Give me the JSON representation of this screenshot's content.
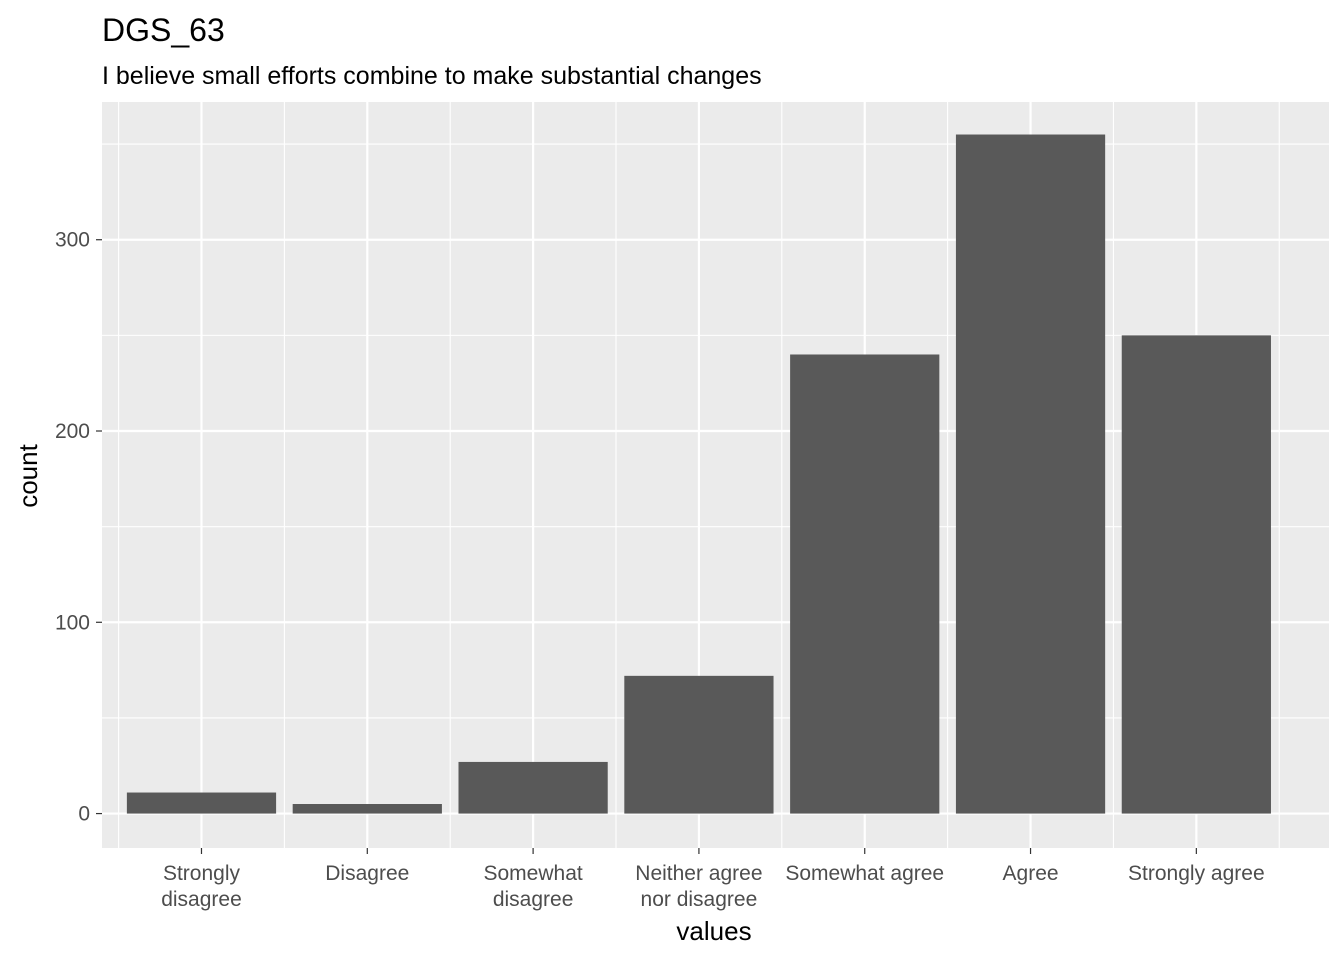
{
  "chart_data": {
    "type": "bar",
    "title": "DGS_63",
    "subtitle": "I believe small efforts combine to make substantial changes",
    "xlabel": "values",
    "ylabel": "count",
    "categories": [
      [
        "Strongly",
        "disagree"
      ],
      [
        "Disagree"
      ],
      [
        "Somewhat",
        "disagree"
      ],
      [
        "Neither agree",
        "nor disagree"
      ],
      [
        "Somewhat agree"
      ],
      [
        "Agree"
      ],
      [
        "Strongly agree"
      ]
    ],
    "values": [
      11,
      5,
      27,
      72,
      240,
      355,
      250
    ],
    "ylim": [
      -18,
      372
    ],
    "yticks": [
      0,
      100,
      200,
      300
    ],
    "ytick_labels": [
      "0",
      "100",
      "200",
      "300"
    ],
    "grid": true,
    "colors": {
      "bar": "#595959",
      "panel": "#ebebeb",
      "grid": "#ffffff",
      "tick_text": "#4d4d4d",
      "tick_mark": "#333333"
    }
  }
}
